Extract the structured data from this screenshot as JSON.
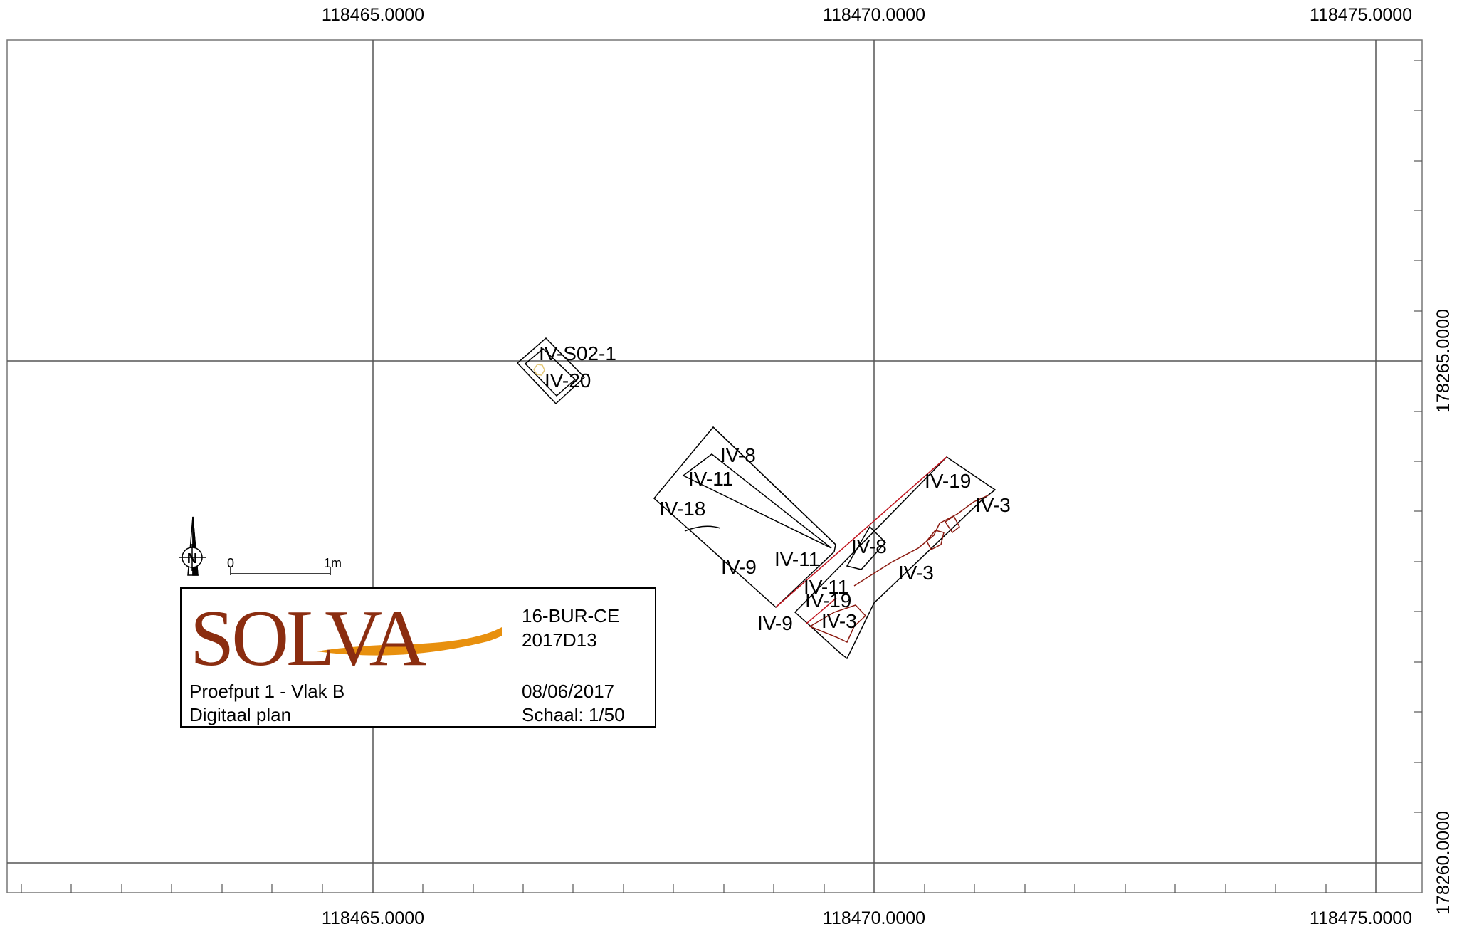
{
  "grid": {
    "x_labels": [
      "118465.0000",
      "118470.0000",
      "118475.0000"
    ],
    "y_labels": [
      "178265.0000",
      "178260.0000"
    ]
  },
  "features": [
    {
      "id": "IV-S02-1"
    },
    {
      "id": "IV-20"
    },
    {
      "id": "IV-8"
    },
    {
      "id": "IV-11"
    },
    {
      "id": "IV-18"
    },
    {
      "id": "IV-9"
    },
    {
      "id": "IV-11"
    },
    {
      "id": "IV-9"
    },
    {
      "id": "IV-19"
    },
    {
      "id": "IV-3"
    },
    {
      "id": "IV-8"
    },
    {
      "id": "IV-3"
    },
    {
      "id": "IV-11"
    },
    {
      "id": "IV-19"
    },
    {
      "id": "IV-3"
    }
  ],
  "scale_bar": {
    "start_label": "0",
    "end_label": "1m"
  },
  "north_arrow": {
    "icon": "north-arrow-icon",
    "letter": "N"
  },
  "title_block": {
    "logo_text": "SOLVA",
    "project_code": "16-BUR-CE",
    "project_id": "2017D13",
    "plan_title": "Proefput 1 - Vlak B",
    "plan_type": "Digitaal plan",
    "date": "08/06/2017",
    "scale": "Schaal: 1/50"
  },
  "colors": {
    "line": "#000000",
    "feature_red": "#c0141e",
    "feature_brown": "#8b1a10",
    "logo_brown": "#8b2d10",
    "logo_orange": "#e8900e",
    "find_yellow": "#e3c878"
  }
}
